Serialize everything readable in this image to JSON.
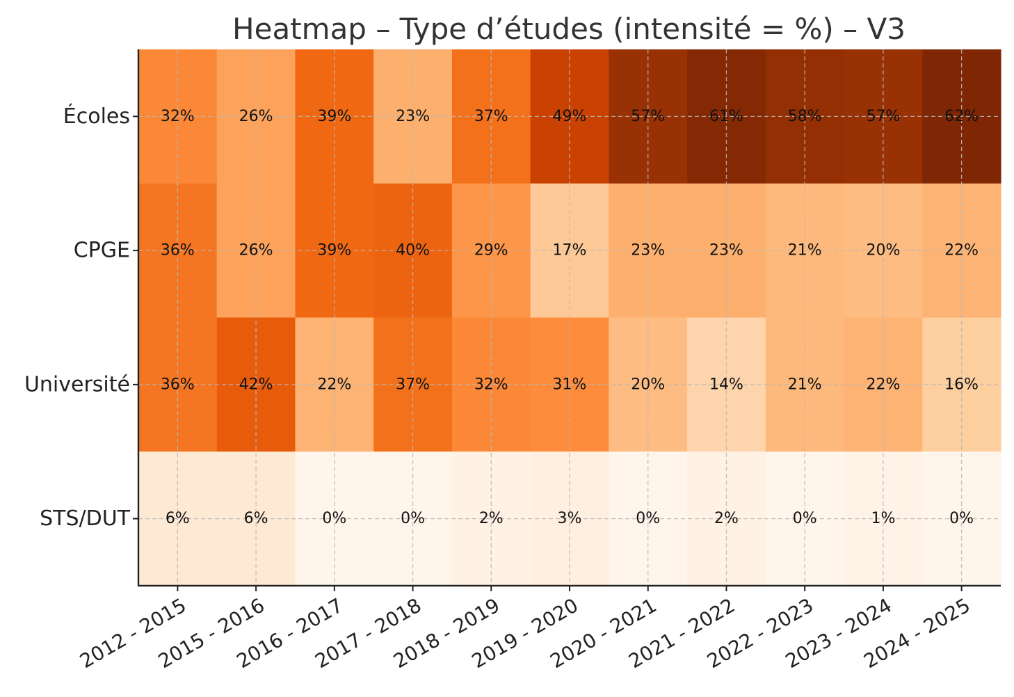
{
  "chart_data": {
    "type": "heatmap",
    "title": "Heatmap – Type d’études (intensité = %) – V3",
    "value_format": "{v}%",
    "colormap": "Oranges",
    "vmin": 0,
    "vmax": 62,
    "grid": true,
    "rows": [
      "Écoles",
      "CPGE",
      "Université",
      "STS/DUT"
    ],
    "columns": [
      "2012 - 2015",
      "2015 - 2016",
      "2016 - 2017",
      "2017 - 2018",
      "2018 - 2019",
      "2019 - 2020",
      "2020 - 2021",
      "2021 - 2022",
      "2022 - 2023",
      "2023 - 2024",
      "2024 - 2025"
    ],
    "values": [
      [
        32,
        26,
        39,
        23,
        37,
        49,
        57,
        61,
        58,
        57,
        62
      ],
      [
        36,
        26,
        39,
        40,
        29,
        17,
        23,
        23,
        21,
        20,
        22
      ],
      [
        36,
        42,
        22,
        37,
        32,
        31,
        20,
        14,
        21,
        22,
        16
      ],
      [
        6,
        6,
        0,
        0,
        2,
        3,
        0,
        2,
        0,
        1,
        0
      ]
    ]
  }
}
